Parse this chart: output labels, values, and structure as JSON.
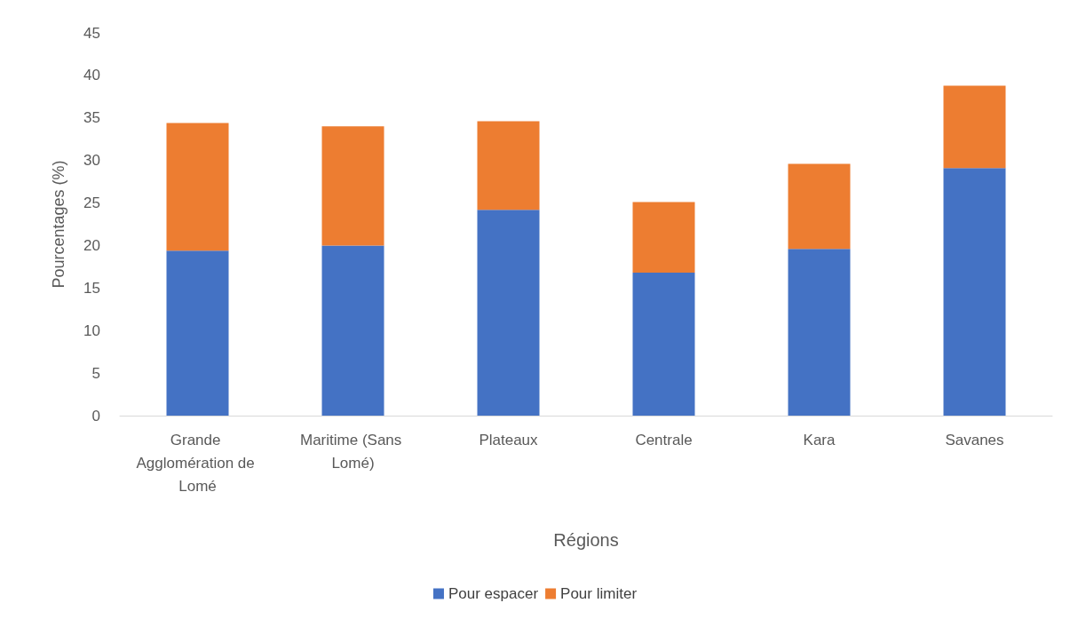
{
  "chart_data": {
    "type": "bar",
    "stacked": true,
    "xlabel": "Régions",
    "ylabel": "Pourcentages (%)",
    "categories": [
      "Grande Agglomération de Lomé",
      "Maritime (Sans Lomé)",
      "Plateaux",
      "Centrale",
      "Kara",
      "Savanes"
    ],
    "series": [
      {
        "name": "Pour espacer",
        "color": "#4472c4",
        "values": [
          19.4,
          20.0,
          24.2,
          16.8,
          19.6,
          29.1
        ]
      },
      {
        "name": "Pour limiter",
        "color": "#ed7d31",
        "values": [
          15.0,
          14.0,
          10.4,
          8.3,
          10.0,
          9.7
        ]
      }
    ],
    "ylim": [
      0,
      45
    ],
    "yticks": [
      0,
      5,
      10,
      15,
      20,
      25,
      30,
      35,
      40,
      45
    ],
    "grid": false,
    "legend": "bottom"
  }
}
